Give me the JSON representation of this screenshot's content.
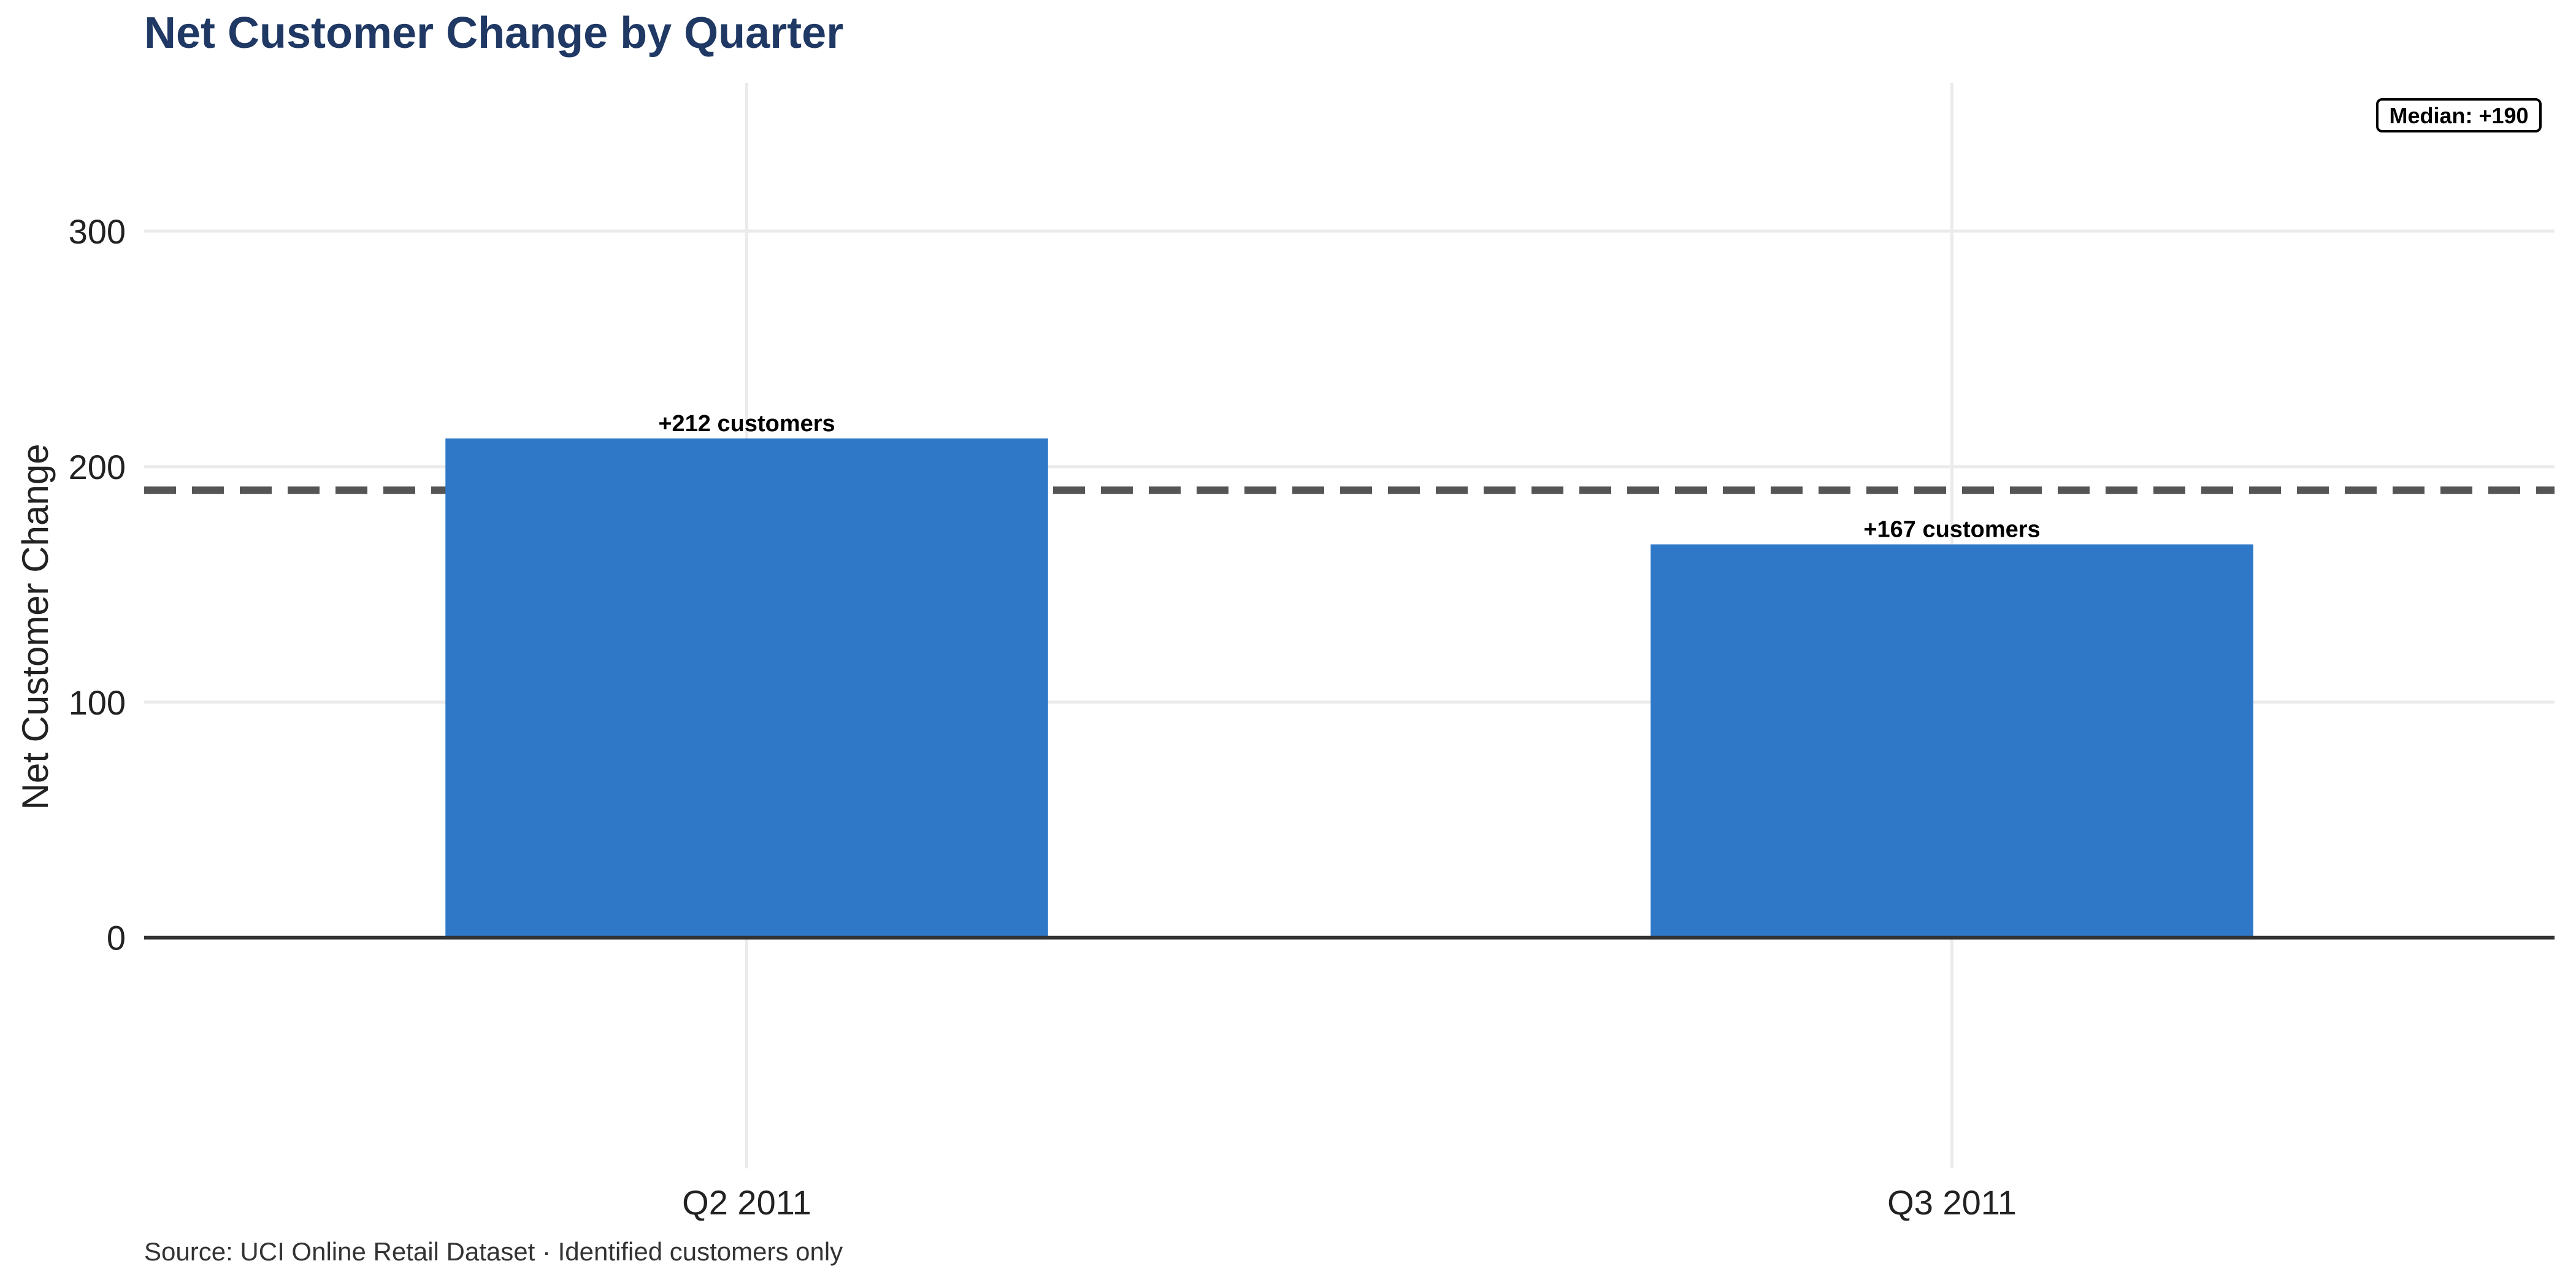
{
  "chart_data": {
    "type": "bar",
    "title": "Net Customer Change by Quarter",
    "ylabel": "Net Customer Change",
    "xlabel": "",
    "categories": [
      "Q2 2011",
      "Q3 2011"
    ],
    "values": [
      212,
      167
    ],
    "data_labels": [
      "+212 customers",
      "+167 customers"
    ],
    "ylim": [
      -98,
      363
    ],
    "yticks": [
      0,
      100,
      200,
      300
    ],
    "ytick_labels": [
      "0",
      "100",
      "200",
      "300"
    ],
    "median": 190,
    "median_label": "Median: +190",
    "grid": true,
    "caption": "Source: UCI Online Retail Dataset · Identified customers only",
    "colors": {
      "bar": "#2f78c8",
      "title": "#1f3864",
      "median_line": "#555555",
      "grid": "#ebebeb",
      "zero_line": "#333333",
      "text": "#222222"
    }
  }
}
